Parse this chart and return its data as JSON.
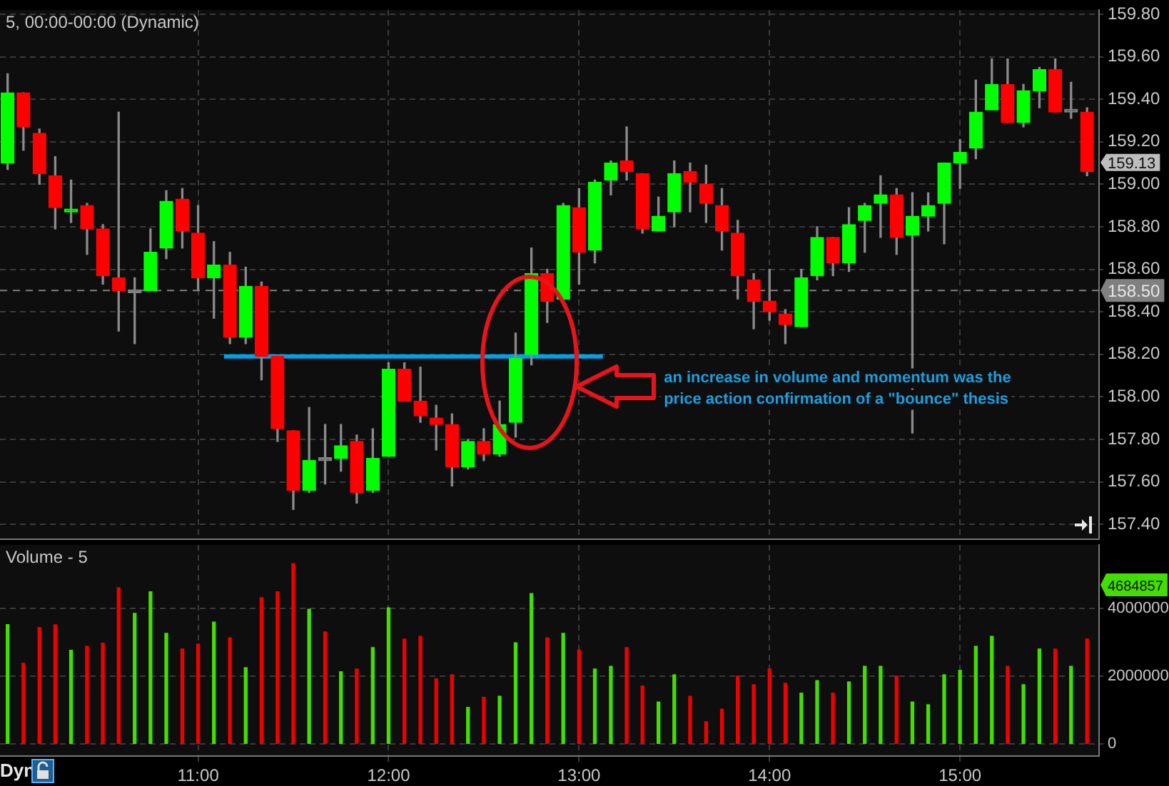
{
  "chart_data": [
    {
      "type": "candlestick",
      "title": "5, 00:00-00:00 (Dynamic)",
      "x": [
        10,
        10.083,
        10.167,
        10.25,
        10.333,
        10.417,
        10.5,
        10.583,
        10.667,
        10.75,
        10.833,
        10.917,
        11,
        11.083,
        11.167,
        11.25,
        11.333,
        11.417,
        11.5,
        11.583,
        11.667,
        11.75,
        11.833,
        11.917,
        12,
        12.083,
        12.167,
        12.25,
        12.333,
        12.417,
        12.5,
        12.583,
        12.667,
        12.75,
        12.833,
        12.917,
        13,
        13.083,
        13.167,
        13.25,
        13.333,
        13.417,
        13.5,
        13.583,
        13.667,
        13.75,
        13.833,
        13.917,
        14,
        14.083,
        14.167,
        14.25,
        14.333,
        14.417,
        14.5,
        14.583,
        14.667,
        14.75,
        14.833,
        14.917,
        15,
        15.083,
        15.167,
        15.25,
        15.333,
        15.417,
        15.5,
        15.583,
        15.667
      ],
      "ohlc": [
        [
          159.1,
          159.52,
          159.07,
          159.43
        ],
        [
          159.43,
          159.43,
          159.16,
          159.27
        ],
        [
          159.24,
          159.26,
          159.0,
          159.05
        ],
        [
          159.04,
          159.13,
          158.79,
          158.89
        ],
        [
          158.87,
          159.02,
          158.82,
          158.88
        ],
        [
          158.9,
          158.91,
          158.67,
          158.79
        ],
        [
          158.79,
          158.81,
          158.53,
          158.57
        ],
        [
          158.56,
          159.34,
          158.31,
          158.5
        ],
        [
          158.49,
          158.56,
          158.25,
          158.49
        ],
        [
          158.5,
          158.79,
          158.5,
          158.68
        ],
        [
          158.7,
          158.97,
          158.65,
          158.92
        ],
        [
          158.93,
          158.98,
          158.7,
          158.78
        ],
        [
          158.77,
          158.9,
          158.5,
          158.56
        ],
        [
          158.56,
          158.73,
          158.37,
          158.62
        ],
        [
          158.62,
          158.68,
          158.25,
          158.28
        ],
        [
          158.28,
          158.61,
          158.25,
          158.52
        ],
        [
          158.52,
          158.54,
          158.08,
          158.19
        ],
        [
          158.19,
          158.19,
          157.79,
          157.85
        ],
        [
          157.84,
          157.84,
          157.47,
          157.56
        ],
        [
          157.56,
          157.95,
          157.55,
          157.7
        ],
        [
          157.7,
          157.87,
          157.59,
          157.7
        ],
        [
          157.71,
          157.87,
          157.65,
          157.77
        ],
        [
          157.79,
          157.82,
          157.5,
          157.55
        ],
        [
          157.56,
          157.85,
          157.55,
          157.71
        ],
        [
          157.72,
          158.16,
          157.72,
          158.13
        ],
        [
          158.13,
          158.16,
          157.98,
          157.98
        ],
        [
          157.98,
          158.14,
          157.88,
          157.91
        ],
        [
          157.9,
          157.96,
          157.75,
          157.87
        ],
        [
          157.87,
          157.92,
          157.58,
          157.67
        ],
        [
          157.67,
          157.8,
          157.66,
          157.79
        ],
        [
          157.79,
          157.85,
          157.7,
          157.73
        ],
        [
          157.73,
          157.98,
          157.72,
          157.87
        ],
        [
          157.88,
          158.3,
          157.81,
          158.18
        ],
        [
          158.2,
          158.7,
          158.15,
          158.58
        ],
        [
          158.58,
          158.6,
          158.35,
          158.45
        ],
        [
          158.46,
          158.91,
          158.45,
          158.9
        ],
        [
          158.89,
          158.98,
          158.53,
          158.68
        ],
        [
          158.69,
          159.02,
          158.63,
          159.01
        ],
        [
          159.02,
          159.11,
          158.95,
          159.1
        ],
        [
          159.11,
          159.27,
          159.02,
          159.06
        ],
        [
          159.05,
          159.05,
          158.77,
          158.79
        ],
        [
          158.78,
          158.94,
          158.78,
          158.85
        ],
        [
          158.87,
          159.11,
          158.8,
          159.05
        ],
        [
          159.06,
          159.1,
          158.87,
          159.01
        ],
        [
          159.0,
          159.09,
          158.82,
          158.91
        ],
        [
          158.9,
          158.98,
          158.69,
          158.78
        ],
        [
          158.77,
          158.83,
          158.46,
          158.57
        ],
        [
          158.55,
          158.58,
          158.32,
          158.45
        ],
        [
          158.45,
          158.6,
          158.36,
          158.4
        ],
        [
          158.39,
          158.41,
          158.25,
          158.34
        ],
        [
          158.33,
          158.6,
          158.33,
          158.56
        ],
        [
          158.57,
          158.8,
          158.55,
          158.75
        ],
        [
          158.75,
          158.75,
          158.57,
          158.63
        ],
        [
          158.63,
          158.89,
          158.59,
          158.81
        ],
        [
          158.83,
          158.91,
          158.68,
          158.9
        ],
        [
          158.91,
          159.04,
          158.75,
          158.95
        ],
        [
          158.95,
          158.98,
          158.67,
          158.75
        ],
        [
          158.76,
          158.96,
          157.83,
          158.85
        ],
        [
          158.85,
          158.96,
          158.78,
          158.9
        ],
        [
          158.91,
          159.1,
          158.72,
          159.1
        ],
        [
          159.1,
          159.21,
          158.98,
          159.15
        ],
        [
          159.17,
          159.49,
          159.12,
          159.34
        ],
        [
          159.35,
          159.59,
          159.35,
          159.47
        ],
        [
          159.47,
          159.59,
          159.29,
          159.29
        ],
        [
          159.29,
          159.47,
          159.27,
          159.44
        ],
        [
          159.44,
          159.55,
          159.36,
          159.54
        ],
        [
          159.54,
          159.59,
          159.34,
          159.34
        ],
        [
          159.34,
          159.48,
          159.31,
          159.34
        ],
        [
          159.34,
          159.36,
          159.04,
          159.06
        ]
      ],
      "colors": [
        "#00ff00",
        "#ff0000",
        "#ff0000",
        "#ff0000",
        "#00ff00",
        "#ff0000",
        "#ff0000",
        "#ff0000",
        "#808080",
        "#00ff00",
        "#00ff00",
        "#ff0000",
        "#ff0000",
        "#00ff00",
        "#ff0000",
        "#00ff00",
        "#ff0000",
        "#ff0000",
        "#ff0000",
        "#00ff00",
        "#808080",
        "#00ff00",
        "#ff0000",
        "#00ff00",
        "#00ff00",
        "#ff0000",
        "#ff0000",
        "#ff0000",
        "#ff0000",
        "#00ff00",
        "#ff0000",
        "#00ff00",
        "#00ff00",
        "#00ff00",
        "#ff0000",
        "#00ff00",
        "#ff0000",
        "#00ff00",
        "#00ff00",
        "#ff0000",
        "#ff0000",
        "#00ff00",
        "#00ff00",
        "#ff0000",
        "#ff0000",
        "#ff0000",
        "#ff0000",
        "#ff0000",
        "#ff0000",
        "#ff0000",
        "#00ff00",
        "#00ff00",
        "#ff0000",
        "#00ff00",
        "#00ff00",
        "#00ff00",
        "#ff0000",
        "#00ff00",
        "#00ff00",
        "#00ff00",
        "#00ff00",
        "#00ff00",
        "#00ff00",
        "#ff0000",
        "#00ff00",
        "#00ff00",
        "#ff0000",
        "#808080",
        "#ff0000"
      ],
      "series": [
        {
          "type": "line",
          "color": "#00a2e8",
          "x": [
            11.136,
            13.125
          ],
          "values": [
            158.19,
            158.19
          ]
        }
      ],
      "xlim": [
        9.96,
        15.73
      ],
      "xticks": [
        11,
        12,
        13,
        14,
        15
      ],
      "ylim": [
        157.33,
        159.82
      ],
      "yticks": [
        {
          "value": 157.4,
          "label": "157.40"
        },
        {
          "value": 157.6,
          "label": "157.60"
        },
        {
          "value": 157.8,
          "label": "157.80"
        },
        {
          "value": 158,
          "label": "158.00"
        },
        {
          "value": 158.2,
          "label": "158.20"
        },
        {
          "value": 158.4,
          "label": "158.40"
        },
        {
          "value": 158.6,
          "label": "158.60"
        },
        {
          "value": 158.8,
          "label": "158.80"
        },
        {
          "value": 159,
          "label": "159.00"
        },
        {
          "value": 159.2,
          "label": "159.20"
        },
        {
          "value": 159.4,
          "label": "159.40"
        },
        {
          "value": 159.6,
          "label": "159.60"
        },
        {
          "value": 159.8,
          "label": "159.80"
        }
      ],
      "grid": true,
      "tick_labels": "y",
      "ref_lines": [
        {
          "axis": "y",
          "value": 158.5,
          "label": "158.50",
          "line_style": "dashed",
          "color": "#808080"
        }
      ],
      "annotations": [
        "159.13",
        "an increase in volume and momentum was the price action confirmation of a \"bounce\" thesis"
      ]
    },
    {
      "type": "bar",
      "title": "Volume - 5",
      "x": [
        10,
        10.083,
        10.167,
        10.25,
        10.333,
        10.417,
        10.5,
        10.583,
        10.667,
        10.75,
        10.833,
        10.917,
        11,
        11.083,
        11.167,
        11.25,
        11.333,
        11.417,
        11.5,
        11.583,
        11.667,
        11.75,
        11.833,
        11.917,
        12,
        12.083,
        12.167,
        12.25,
        12.333,
        12.417,
        12.5,
        12.583,
        12.667,
        12.75,
        12.833,
        12.917,
        13,
        13.083,
        13.167,
        13.25,
        13.333,
        13.417,
        13.5,
        13.583,
        13.667,
        13.75,
        13.833,
        13.917,
        14,
        14.083,
        14.167,
        14.25,
        14.333,
        14.417,
        14.5,
        14.583,
        14.667,
        14.75,
        14.833,
        14.917,
        15,
        15.083,
        15.167,
        15.25,
        15.333,
        15.417,
        15.5,
        15.583,
        15.667
      ],
      "values": [
        3520000,
        2380000,
        3430000,
        3510000,
        2760000,
        2880000,
        2970000,
        4600000,
        3850000,
        4480000,
        3260000,
        2800000,
        2940000,
        3590000,
        3130000,
        2250000,
        4310000,
        4480000,
        5310000,
        3970000,
        3300000,
        2130000,
        2210000,
        2840000,
        4010000,
        3090000,
        3170000,
        1920000,
        2040000,
        1080000,
        1380000,
        1410000,
        2980000,
        4430000,
        3130000,
        3260000,
        2770000,
        2210000,
        2290000,
        2840000,
        1710000,
        1240000,
        2040000,
        1410000,
        660000,
        1030000,
        2000000,
        1750000,
        2210000,
        1790000,
        1500000,
        1870000,
        1500000,
        1830000,
        2290000,
        2290000,
        2000000,
        1240000,
        1160000,
        2040000,
        2170000,
        2880000,
        3170000,
        2290000,
        1750000,
        2800000,
        2800000,
        2290000,
        3090000
      ],
      "colors": [
        "#44dd00",
        "#ee0000",
        "#ee0000",
        "#ee0000",
        "#44dd00",
        "#ee0000",
        "#ee0000",
        "#ee0000",
        "#44dd00",
        "#44dd00",
        "#44dd00",
        "#ee0000",
        "#ee0000",
        "#44dd00",
        "#ee0000",
        "#44dd00",
        "#ee0000",
        "#ee0000",
        "#ee0000",
        "#44dd00",
        "#ee0000",
        "#44dd00",
        "#ee0000",
        "#44dd00",
        "#44dd00",
        "#ee0000",
        "#ee0000",
        "#ee0000",
        "#ee0000",
        "#44dd00",
        "#ee0000",
        "#44dd00",
        "#44dd00",
        "#44dd00",
        "#ee0000",
        "#44dd00",
        "#ee0000",
        "#44dd00",
        "#44dd00",
        "#ee0000",
        "#ee0000",
        "#44dd00",
        "#44dd00",
        "#ee0000",
        "#ee0000",
        "#ee0000",
        "#ee0000",
        "#ee0000",
        "#ee0000",
        "#ee0000",
        "#44dd00",
        "#44dd00",
        "#ee0000",
        "#44dd00",
        "#44dd00",
        "#44dd00",
        "#ee0000",
        "#44dd00",
        "#44dd00",
        "#44dd00",
        "#44dd00",
        "#44dd00",
        "#44dd00",
        "#ee0000",
        "#44dd00",
        "#44dd00",
        "#ee0000",
        "#44dd00",
        "#ee0000"
      ],
      "xlim": [
        9.96,
        15.73
      ],
      "xticks": [
        {
          "value": 11,
          "label": "11:00"
        },
        {
          "value": 12,
          "label": "12:00"
        },
        {
          "value": 13,
          "label": "13:00"
        },
        {
          "value": 14,
          "label": "14:00"
        },
        {
          "value": 15,
          "label": "15:00"
        }
      ],
      "ylim": [
        -350000,
        5860000
      ],
      "yticks": [
        0,
        2000000,
        4000000
      ],
      "grid": true,
      "annotations": [
        "4684857",
        "Dyn"
      ]
    }
  ]
}
